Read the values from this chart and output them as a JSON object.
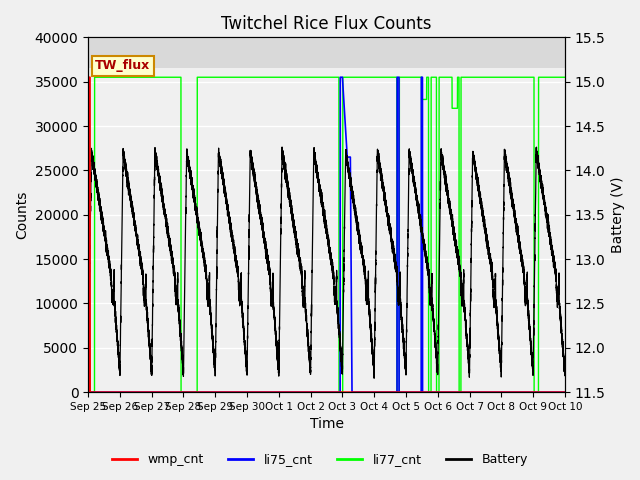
{
  "title": "Twitchel Rice Flux Counts",
  "xlabel": "Time",
  "ylabel_left": "Counts",
  "ylabel_right": "Battery (V)",
  "ylim_left": [
    0,
    40000
  ],
  "ylim_right": [
    11.5,
    15.5
  ],
  "yticks_left": [
    0,
    5000,
    10000,
    15000,
    20000,
    25000,
    30000,
    35000,
    40000
  ],
  "yticks_right": [
    11.5,
    12.0,
    12.5,
    13.0,
    13.5,
    14.0,
    14.5,
    15.0,
    15.5
  ],
  "xtick_labels": [
    "Sep 25",
    "Sep 26",
    "Sep 27",
    "Sep 28",
    "Sep 29",
    "Sep 30",
    "Oct 1",
    "Oct 2",
    "Oct 3",
    "Oct 4",
    "Oct 5",
    "Oct 6",
    "Oct 7",
    "Oct 8",
    "Oct 9",
    "Oct 10"
  ],
  "plot_bg_color": "#f0f0f0",
  "annotation_text": "TW_flux",
  "annotation_bg": "#ffffcc",
  "annotation_border": "#cc8800",
  "li77_base": 35500,
  "battery_peak_v": 14.2,
  "battery_min_v": 11.7,
  "battery_wiggle_v": 12.5,
  "span_top_facecolor": "#d8d8d8"
}
